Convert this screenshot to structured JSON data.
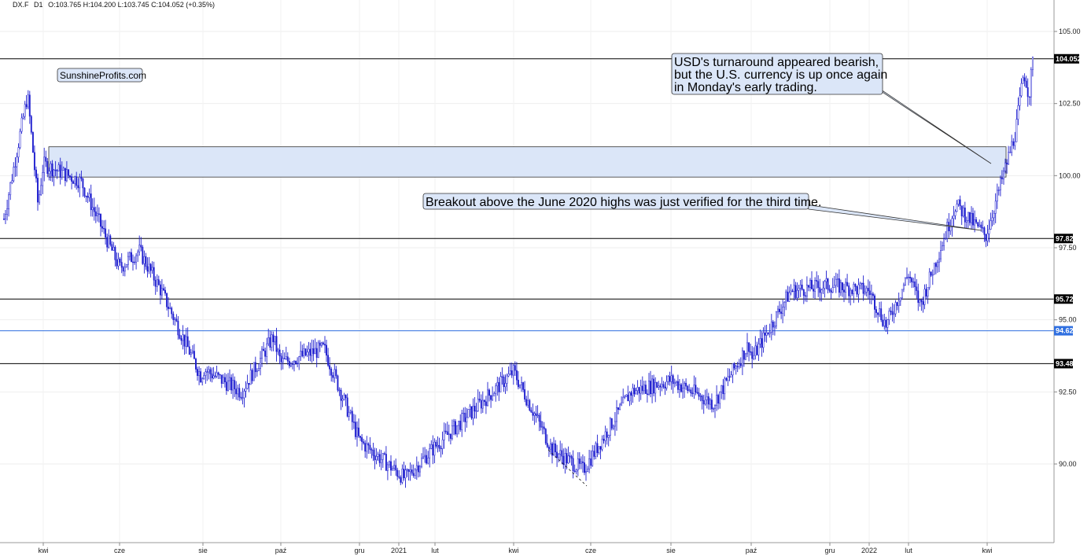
{
  "header": {
    "symbol": "DX.F",
    "interval": "D1",
    "ohlc": "O:103.765  H:104.200  L:103.745  C:104.052  (+0.35%)"
  },
  "watermark": "SunshineProfits.com",
  "annotations": [
    {
      "lines": [
        "USD's turnaround appeared bearish,",
        "but the U.S. currency is up once again",
        "in Monday's early trading."
      ]
    },
    {
      "lines": [
        "Breakout above the June 2020 highs was just verified for the third time."
      ]
    }
  ],
  "chart_data": {
    "type": "candlestick",
    "series_color": "#1f1fcf",
    "y_range": [
      88.0,
      106.0
    ],
    "y_ticks": [
      "105.00",
      "102.50",
      "100.00",
      "97.50",
      "95.00",
      "92.50",
      "90.00"
    ],
    "x_ticks": [
      "kwi",
      "cze",
      "sie",
      "paź",
      "gru",
      "2021",
      "lut",
      "kwi",
      "cze",
      "sie",
      "paź",
      "gru",
      "2022",
      "lut",
      "kwi"
    ],
    "last_price": "104.052",
    "horizontal_levels": [
      {
        "label": "104.052",
        "value": 104.052,
        "color": "#000000"
      },
      {
        "label": "97.82",
        "value": 97.82,
        "color": "#000000"
      },
      {
        "label": "95.72",
        "value": 95.72,
        "color": "#000000"
      },
      {
        "label": "94.62",
        "value": 94.62,
        "color": "#2f6fe0"
      },
      {
        "label": "93.48",
        "value": 93.48,
        "color": "#000000"
      }
    ],
    "resistance_zone": {
      "low": 99.95,
      "high": 101.0,
      "color": "#dbe6f8"
    },
    "price_path": [
      {
        "date": "2020-03",
        "close": 98.5
      },
      {
        "date": "2020-03-19",
        "close": 102.8
      },
      {
        "date": "2020-03-27",
        "close": 99.0
      },
      {
        "date": "2020-04",
        "close": 100.4
      },
      {
        "date": "2020-05",
        "close": 99.8
      },
      {
        "date": "2020-06",
        "close": 96.8
      },
      {
        "date": "2020-06-15",
        "close": 97.4
      },
      {
        "date": "2020-07",
        "close": 96.0
      },
      {
        "date": "2020-07-30",
        "close": 93.0
      },
      {
        "date": "2020-08",
        "close": 93.3
      },
      {
        "date": "2020-09-01",
        "close": 92.5
      },
      {
        "date": "2020-09-25",
        "close": 94.4
      },
      {
        "date": "2020-10",
        "close": 93.5
      },
      {
        "date": "2020-11-04",
        "close": 94.0
      },
      {
        "date": "2020-12",
        "close": 90.8
      },
      {
        "date": "2021-01-06",
        "close": 89.5
      },
      {
        "date": "2021-02",
        "close": 90.6
      },
      {
        "date": "2021-03-31",
        "close": 93.2
      },
      {
        "date": "2021-05",
        "close": 90.5
      },
      {
        "date": "2021-05-25",
        "close": 89.8
      },
      {
        "date": "2021-06",
        "close": 90.2
      },
      {
        "date": "2021-07",
        "close": 92.5
      },
      {
        "date": "2021-08",
        "close": 92.9
      },
      {
        "date": "2021-09-03",
        "close": 92.1
      },
      {
        "date": "2021-09-30",
        "close": 94.2
      },
      {
        "date": "2021-10",
        "close": 93.6
      },
      {
        "date": "2021-11",
        "close": 96.0
      },
      {
        "date": "2021-12",
        "close": 96.2
      },
      {
        "date": "2022-01",
        "close": 96.0
      },
      {
        "date": "2022-01-14",
        "close": 94.8
      },
      {
        "date": "2022-02",
        "close": 96.6
      },
      {
        "date": "2022-02-10",
        "close": 95.5
      },
      {
        "date": "2022-03-07",
        "close": 99.0
      },
      {
        "date": "2022-03-30",
        "close": 97.9
      },
      {
        "date": "2022-04-25",
        "close": 101.5
      },
      {
        "date": "2022-05-02",
        "close": 103.6
      },
      {
        "date": "2022-05-06",
        "close": 102.8
      },
      {
        "date": "2022-05-09",
        "close": 104.05
      }
    ]
  }
}
